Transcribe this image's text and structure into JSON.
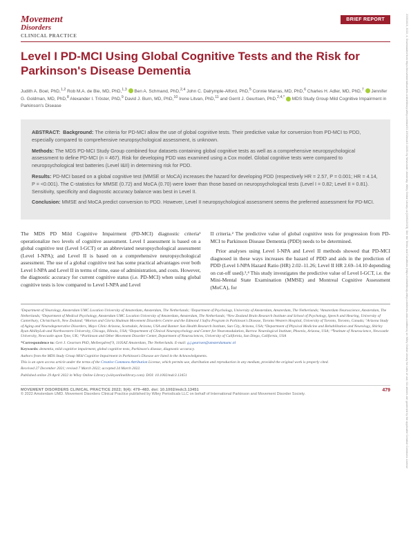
{
  "journal": {
    "name_line1": "Movement",
    "name_line2": "Disorders",
    "subtitle": "CLINICAL PRACTICE",
    "badge": "BRIEF REPORT"
  },
  "title": "Level I PD-MCI Using Global Cognitive Tests and the Risk for Parkinson's Disease Dementia",
  "authors_html": "Judith A. Boel, PhD,<sup>1,2</sup> Rob M.A. de Bie, MD, PhD,<sup>1,3</sup> ⊙ Ben A. Schmand, PhD,<sup>2,4</sup> John C. Dalrymple-Alford, PhD,<sup>5</sup> Connie Marras, MD, PhD,<sup>6</sup> Charles H. Adler, MD, PhD,<sup>7</sup> ⊙ Jennifer G. Goldman, MD, PhD,<sup>8</sup> Alexander I. Tröster, PhD,<sup>9</sup> David J. Burn, MD, PhD,<sup>10</sup> Irene Litvan, PhD,<sup>11</sup> and Gerrit J. Geurtsen, PhD,<sup>2,4,*</sup> ⊙ MDS Study Group Mild Cognitive Impairment in Parkinson's Disease",
  "abstract": {
    "head": "ABSTRACT:",
    "background_label": "Background:",
    "background": "The criteria for PD-MCI allow the use of global cognitive tests. Their predictive value for conversion from PD-MCI to PDD, especially compared to comprehensive neuropsychological assessment, is unknown.",
    "methods_label": "Methods:",
    "methods": "The MDS PD-MCI Study Group combined four datasets containing global cognitive tests as well as a comprehensive neuropsychological assessment to define PD-MCI (n = 467). Risk for developing PDD was examined using a Cox model. Global cognitive tests were compared to neuropsychological test batteries (Level I&II) in determining risk for PDD.",
    "results_label": "Results:",
    "results": "PD-MCI based on a global cognitive test (MMSE or MoCA) increases the hazard for developing PDD (respectively HR = 2.57, P = 0.001; HR = 4.14, P = <0.001). The C-statistics for MMSE (0.72) and MoCA (0.70) were lower than those based on neuropsychological tests (Level I = 0.82; Level II = 0.81). Sensitivity, specificity and diagnostic accuracy balance was best in Level II.",
    "conclusion_label": "Conclusion:",
    "conclusion": "MMSE and MoCA predict conversion to PDD. However, Level II neuropsychological assessment seems the preferred assessment for PD-MCI."
  },
  "body": {
    "col1_p1": "The MDS PD Mild Cognitive Impairment (PD-MCI) diagnostic criteria¹ operationalize two levels of cognitive assessment. Level I assessment is based on a global cognitive test (Level I-GCT) or an abbreviated neuropsychological assessment (Level I-NPA); and Level II is based on a comprehensive neuropsychological assessment. The use of a global cognitive test has some practical advantages over both Level I-NPA and Level II in terms of time, ease of administration, and costs. However, the diagnostic accuracy for current cognitive status (i.e. PD-MCI) when using global cognitive tests is low compared to Level I-NPA and Level",
    "col2_p1": "II criteria.² The predictive value of global cognitive tests for progression from PD-MCI to Parkinson Disease Dementia (PDD) needs to be determined.",
    "col2_p2": "Prior analyses using Level I-NPA and Level II methods showed that PD-MCI diagnosed in these ways increases the hazard of PDD and aids in the prediction of PDD (Level I-NPA Hazard Ratio (HR) 2.02–11.26; Level II HR 2.69–14.10 depending on cut-off used).³,⁴ This study investigates the predictive value of Level I-GCT, i.e. the Mini-Mental State Examination (MMSE) and Montreal Cognitive Assessment (MoCA), for"
  },
  "footnotes": {
    "affiliations": "¹Department of Neurology, Amsterdam UMC Location University of Amsterdam, Amsterdam, The Netherlands; ²Department of Psychology, University of Amsterdam, Amsterdam, The Netherlands; ³Amsterdam Neuroscience, Amsterdam, The Netherlands; ⁴Department of Medical Psychology, Amsterdam UMC Location University of Amsterdam, Amsterdam, The Netherlands; ⁵New Zealand Brain Research Institute and School of Psychology, Speech and Hearing, University of Canterbury, Christchurch, New Zealand; ⁶Morton and Gloria Shulman Movement Disorders Centre and the Edmond J Safra Program in Parkinson's Disease, Toronto Western Hospital, University of Toronto, Toronto, Canada; ⁷Arizona Study of Aging and Neurodegenerative Disorders, Mayo Clinic Arizona, Scottsdale, Arizona, USA and Banner Sun Health Research Institute, Sun City, Arizona, USA; ⁸Department of Physical Medicine and Rehabilitation and Neurology, Shirley Ryan AbilityLab and Northwestern University, Chicago, Illinois, USA; ⁹Department of Clinical Neuropsychology and Center for Neuromodulation, Barrow Neurological Institute, Phoenix, Arizona, USA; ¹⁰Institute of Neuroscience, Newcastle University, Newcastle upon Tyne, UK; ¹¹Parkinson and Other Movement Disorder Center, Department of Neurosciences, University of California, San Diego, California, USA",
    "correspondence_label": "*Correspondence to:",
    "correspondence": "Gert J. Geurtsen PhD, Meibergdreef 9, 1105AZ Amsterdam, The Netherlands. E-mail: g.j.geurtsen@amsterdamumc.nl",
    "keywords_label": "Keywords:",
    "keywords": "dementia, mild cognitive impairment, global cognitive tests, Parkinson's disease, diagnostic accuracy.",
    "acknowledgment": "Authors from the MDS Study Group Mild Cognitive Impairment in Parkinson's Disease are listed in the Acknowledgments.",
    "license": "This is an open access article under the terms of the Creative Commons Attribution License, which permits use, distribution and reproduction in any medium, provided the original work is properly cited.",
    "dates": "Received 27 December 2021; revised 7 March 2022; accepted 24 March 2022.",
    "published": "Published online 29 April 2022 in Wiley Online Library (wileyonlinelibrary.com). DOI: 10.1002/mdc3.13451"
  },
  "footer": {
    "left": "MOVEMENT DISORDERS CLINICAL PRACTICE 2022; 9(4): 479–483. doi: 10.1002/mdc3.13451",
    "copyright": "© 2022 Amsterdam UMD. Movement Disorders Clinical Practice published by Wiley Periodicals LLC on behalf of International Parkinson and Movement Disorder Society.",
    "page": "479"
  },
  "side": "23301619, 2022, 4, Downloaded from https://movementdisorders.onlinelibrary.wiley.com/doi/10.1002/mdc3.13451 by Newcastle University, Wiley Online Library on [19/01/2023]. See the Terms and Conditions (https://onlinelibrary.wiley.com/terms-and-conditions) on Wiley Online Library for rules of use; OA articles are governed by the applicable Creative Commons License",
  "colors": {
    "brand": "#9c1f2e",
    "orcid": "#a6ce39",
    "abstract_bg": "#e8e8e8",
    "link": "#2a5db0"
  }
}
